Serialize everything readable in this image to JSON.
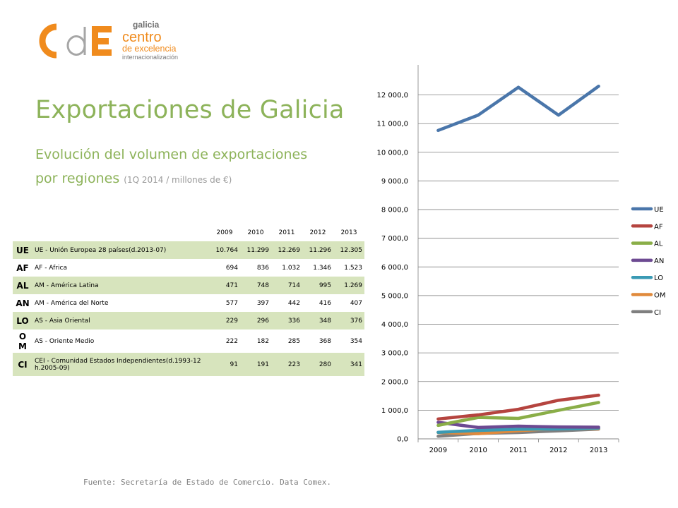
{
  "logo": {
    "galicia": "galicia",
    "line1": "centro",
    "line2": "de excelencia",
    "line3": "internacionalización"
  },
  "header": {
    "title": "Exportaciones de Galicia",
    "subtitle_line1": "Evolución del volumen de exportaciones",
    "subtitle_line2": "por regiones",
    "subtitle_note": "(1Q 2014 / millones de €)"
  },
  "table": {
    "years": [
      "2009",
      "2010",
      "2011",
      "2012",
      "2013"
    ],
    "rows": [
      {
        "code": "UE",
        "name": "UE - Unión Europea 28 países(d.2013-07)",
        "values": [
          "10.764",
          "11.299",
          "12.269",
          "11.296",
          "12.305"
        ]
      },
      {
        "code": "AF",
        "name": "AF - Africa",
        "values": [
          "694",
          "836",
          "1.032",
          "1.346",
          "1.523"
        ]
      },
      {
        "code": "AL",
        "name": "AM - América Latina",
        "values": [
          "471",
          "748",
          "714",
          "995",
          "1.269"
        ]
      },
      {
        "code": "AN",
        "name": "AM - América del Norte",
        "values": [
          "577",
          "397",
          "442",
          "416",
          "407"
        ]
      },
      {
        "code": "LO",
        "name": "AS - Asia Oriental",
        "values": [
          "229",
          "296",
          "336",
          "348",
          "376"
        ]
      },
      {
        "code": "OM",
        "code_a": "O",
        "code_b": "M",
        "name": "AS - Oriente Medio",
        "values": [
          "222",
          "182",
          "285",
          "368",
          "354"
        ]
      },
      {
        "code": "CI",
        "name": "CEI - Comunidad Estados Independientes(d.1993-12 h.2005-09)",
        "values": [
          "91",
          "191",
          "223",
          "280",
          "341"
        ]
      }
    ]
  },
  "chart_data": {
    "type": "line",
    "title": "",
    "xlabel": "",
    "ylabel": "",
    "x": [
      "2009",
      "2010",
      "2011",
      "2012",
      "2013"
    ],
    "ylim": [
      0,
      13000
    ],
    "yticks": [
      0,
      1000,
      2000,
      3000,
      4000,
      5000,
      6000,
      7000,
      8000,
      9000,
      10000,
      11000,
      12000
    ],
    "ytick_labels": [
      "0,0",
      "1 000,0",
      "2 000,0",
      "3 000,0",
      "4 000,0",
      "5 000,0",
      "6 000,0",
      "7 000,0",
      "8 000,0",
      "9 000,0",
      "10 000,0",
      "11 000,0",
      "12 000,0"
    ],
    "grid": true,
    "legend_position": "right",
    "series": [
      {
        "name": "UE",
        "color": "#4a76aa",
        "values": [
          10764,
          11299,
          12269,
          11296,
          12305
        ]
      },
      {
        "name": "AF",
        "color": "#b5443f",
        "values": [
          694,
          836,
          1032,
          1346,
          1523
        ]
      },
      {
        "name": "AL",
        "color": "#8aae48",
        "values": [
          471,
          748,
          714,
          995,
          1269
        ]
      },
      {
        "name": "AN",
        "color": "#6d4a92",
        "values": [
          577,
          397,
          442,
          416,
          407
        ]
      },
      {
        "name": "LO",
        "color": "#3a9ab4",
        "values": [
          229,
          296,
          336,
          348,
          376
        ]
      },
      {
        "name": "OM",
        "color": "#e08a3c",
        "values": [
          222,
          182,
          285,
          368,
          354
        ]
      },
      {
        "name": "CI",
        "color": "#7f7f7f",
        "values": [
          91,
          191,
          223,
          280,
          341
        ]
      }
    ]
  },
  "source": "Fuente: Secretaría de Estado de Comercio. Data Comex."
}
